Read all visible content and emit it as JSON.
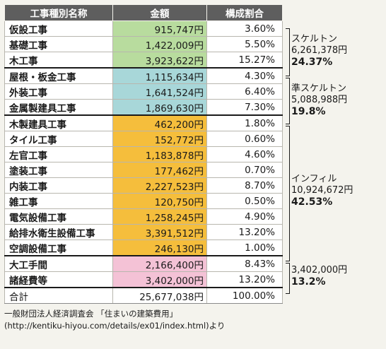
{
  "headers": {
    "name": "工事種別名称",
    "amount": "金額",
    "ratio": "構成割合"
  },
  "rows": [
    {
      "name": "仮設工事",
      "amount": "915,747円",
      "ratio": "3.60%"
    },
    {
      "name": "基礎工事",
      "amount": "1,422,009円",
      "ratio": "5.50%"
    },
    {
      "name": "木工事",
      "amount": "3,923,622円",
      "ratio": "15.27%"
    },
    {
      "name": "屋根・板金工事",
      "amount": "1,115,634円",
      "ratio": "4.30%"
    },
    {
      "name": "外装工事",
      "amount": "1,641,524円",
      "ratio": "6.40%"
    },
    {
      "name": "金属製建具工事",
      "amount": "1,869,630円",
      "ratio": "7.30%"
    },
    {
      "name": "木製建具工事",
      "amount": "462,200円",
      "ratio": "1.80%"
    },
    {
      "name": "タイル工事",
      "amount": "152,772円",
      "ratio": "0.60%"
    },
    {
      "name": "左官工事",
      "amount": "1,183,878円",
      "ratio": "4.60%"
    },
    {
      "name": "塗装工事",
      "amount": "177,462円",
      "ratio": "0.70%"
    },
    {
      "name": "内装工事",
      "amount": "2,227,523円",
      "ratio": "8.70%"
    },
    {
      "name": "雑工事",
      "amount": "120,750円",
      "ratio": "0.50%"
    },
    {
      "name": "電気設備工事",
      "amount": "1,258,245円",
      "ratio": "4.90%"
    },
    {
      "name": "給排水衛生設備工事",
      "amount": "3,391,512円",
      "ratio": "13.20%"
    },
    {
      "name": "空調設備工事",
      "amount": "246,130円",
      "ratio": "1.00%"
    },
    {
      "name": "大工手間",
      "amount": "2,166,400円",
      "ratio": "8.43%"
    },
    {
      "name": "諸経費等",
      "amount": "3,402,000円",
      "ratio": "13.20%"
    }
  ],
  "total": {
    "name": "合計",
    "amount": "25,677,038円",
    "ratio": "100.00%"
  },
  "groups": [
    {
      "label": "スケルトン",
      "amount": "6,261,378円",
      "percent": "24.37%",
      "color": "#b8dc9e"
    },
    {
      "label": "準スケルトン",
      "amount": "5,088,988円",
      "percent": "19.8%",
      "color": "#a8d7d9"
    },
    {
      "label": "インフィル",
      "amount": "10,924,672円",
      "percent": "42.53%",
      "color": "#f5be3c"
    },
    {
      "label": "",
      "amount": "3,402,000円",
      "percent": "13.2%",
      "color": "#f4c2d6"
    }
  ],
  "source": {
    "line1": "一般財団法人経済調査会 「住まいの建築費用」",
    "line2": "(http://kentiku-hiyou.com/details/ex01/index.html)より"
  }
}
